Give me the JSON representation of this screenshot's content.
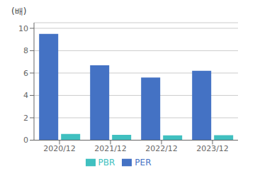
{
  "chart_data": {
    "type": "bar",
    "categories": [
      "2020/12",
      "2021/12",
      "2022/12",
      "2023/12"
    ],
    "series": [
      {
        "name": "PER",
        "color": "#4472C4",
        "values": [
          9.5,
          6.7,
          5.6,
          6.2
        ]
      },
      {
        "name": "PBR",
        "color": "#40C0C0",
        "values": [
          0.55,
          0.48,
          0.43,
          0.44
        ]
      }
    ],
    "ylabel": "(배)",
    "ylim": [
      0,
      10.5
    ],
    "yticks": [
      0,
      2,
      4,
      6,
      8,
      10
    ],
    "grid": true,
    "legend": "bottom"
  }
}
